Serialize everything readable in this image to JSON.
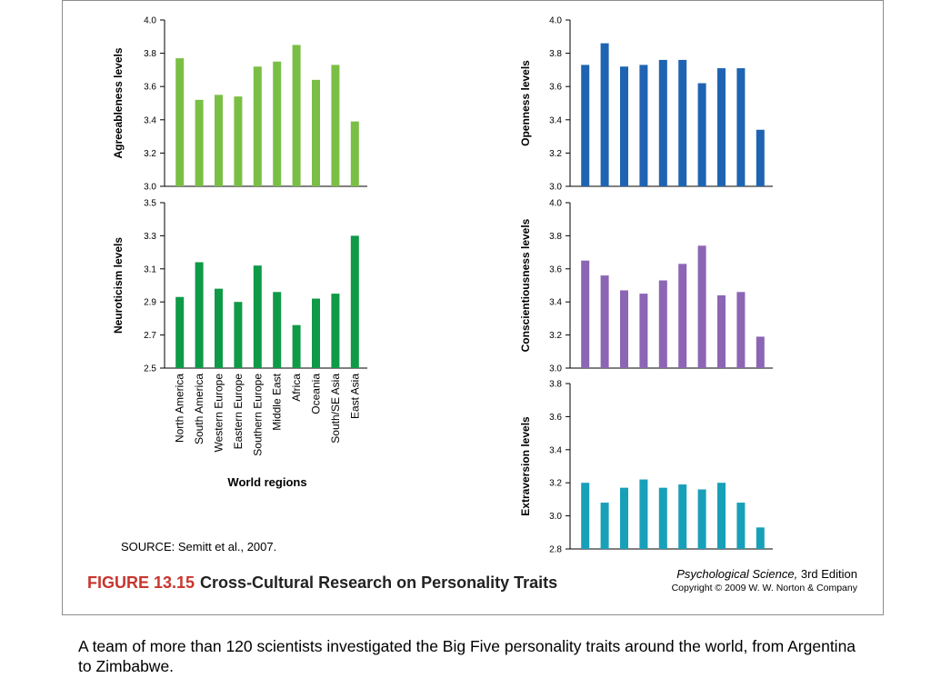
{
  "figure": {
    "number": "FIGURE 13.15",
    "title": "Cross-Cultural Research on Personality Traits",
    "source": "SOURCE: Semitt et al., 2007.",
    "book_title": "Psychological Science,",
    "book_edition": " 3rd Edition",
    "copyright": "Copyright © 2009 W. W. Norton & Company",
    "x_axis_title": "World regions"
  },
  "caption": "A team of more than 120 scientists investigated the Big Five personality traits around the world, from Argentina to Zimbabwe.",
  "chart_data": [
    {
      "type": "bar",
      "ylabel": "Agreeableness levels",
      "color": "#7abf45",
      "ylim": [
        3.0,
        4.0
      ],
      "yticks": [
        "3.0",
        "3.2",
        "3.4",
        "3.6",
        "3.8",
        "4.0"
      ],
      "categories": [
        "North America",
        "South America",
        "Western Europe",
        "Eastern Europe",
        "Southern Europe",
        "Middle East",
        "Africa",
        "Oceania",
        "South/SE Asia",
        "East Asia"
      ],
      "values": [
        3.77,
        3.52,
        3.55,
        3.54,
        3.72,
        3.75,
        3.85,
        3.64,
        3.73,
        3.39
      ]
    },
    {
      "type": "bar",
      "ylabel": "Neuroticism levels",
      "color": "#0f9a47",
      "ylim": [
        2.5,
        3.5
      ],
      "yticks": [
        "2.5",
        "2.7",
        "2.9",
        "3.1",
        "3.3",
        "3.5"
      ],
      "categories": [
        "North America",
        "South America",
        "Western Europe",
        "Eastern Europe",
        "Southern Europe",
        "Middle East",
        "Africa",
        "Oceania",
        "South/SE Asia",
        "East Asia"
      ],
      "values": [
        2.93,
        3.14,
        2.98,
        2.9,
        3.12,
        2.96,
        2.76,
        2.92,
        2.95,
        3.3
      ]
    },
    {
      "type": "bar",
      "ylabel": "Openness levels",
      "color": "#1f64b2",
      "ylim": [
        3.0,
        4.0
      ],
      "yticks": [
        "3.0",
        "3.2",
        "3.4",
        "3.6",
        "3.8",
        "4.0"
      ],
      "categories": [
        "North America",
        "South America",
        "Western Europe",
        "Eastern Europe",
        "Southern Europe",
        "Middle East",
        "Africa",
        "Oceania",
        "South/SE Asia",
        "East Asia"
      ],
      "values": [
        3.73,
        3.86,
        3.72,
        3.73,
        3.76,
        3.76,
        3.62,
        3.71,
        3.71,
        3.34
      ]
    },
    {
      "type": "bar",
      "ylabel": "Conscientiousness levels",
      "color": "#8c66b5",
      "ylim": [
        3.0,
        4.0
      ],
      "yticks": [
        "3.0",
        "3.2",
        "3.4",
        "3.6",
        "3.8",
        "4.0"
      ],
      "categories": [
        "North America",
        "South America",
        "Western Europe",
        "Eastern Europe",
        "Southern Europe",
        "Middle East",
        "Africa",
        "Oceania",
        "South/SE Asia",
        "East Asia"
      ],
      "values": [
        3.65,
        3.56,
        3.47,
        3.45,
        3.53,
        3.63,
        3.74,
        3.44,
        3.46,
        3.19
      ]
    },
    {
      "type": "bar",
      "ylabel": "Extraversion levels",
      "color": "#19a0b9",
      "ylim": [
        2.8,
        3.8
      ],
      "yticks": [
        "2.8",
        "3.0",
        "3.2",
        "3.4",
        "3.6",
        "3.8"
      ],
      "categories": [
        "North America",
        "South America",
        "Western Europe",
        "Eastern Europe",
        "Southern Europe",
        "Middle East",
        "Africa",
        "Oceania",
        "South/SE Asia",
        "East Asia"
      ],
      "values": [
        3.2,
        3.08,
        3.17,
        3.22,
        3.17,
        3.19,
        3.16,
        3.2,
        3.08,
        2.93
      ]
    }
  ]
}
